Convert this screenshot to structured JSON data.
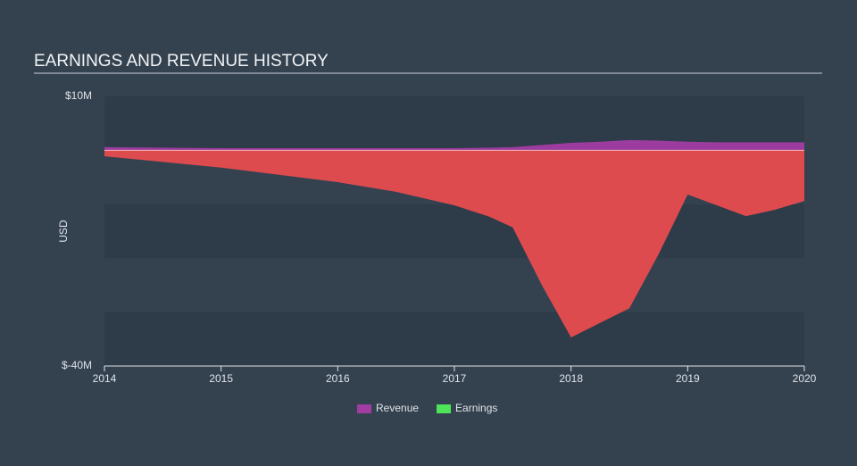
{
  "chart_data": {
    "type": "area",
    "title": "EARNINGS AND REVENUE HISTORY",
    "y_label": "USD",
    "x": [
      2014,
      2015,
      2016,
      2016.5,
      2017,
      2017.3,
      2017.5,
      2017.75,
      2018,
      2018.25,
      2018.5,
      2018.75,
      2019,
      2019.25,
      2019.5,
      2019.75,
      2020
    ],
    "series": [
      {
        "name": "Revenue",
        "color": "#a13ca3",
        "values": [
          0.6,
          0.4,
          0.4,
          0.4,
          0.4,
          0.5,
          0.6,
          1.0,
          1.4,
          1.6,
          1.9,
          1.8,
          1.6,
          1.5,
          1.5,
          1.5,
          1.5
        ]
      },
      {
        "name": "Earnings",
        "color": "#4fe35a",
        "negative_color": "#e84c4f",
        "values": [
          -1.1,
          -3.2,
          -5.9,
          -7.7,
          -10.2,
          -12.3,
          -14.3,
          -25,
          -34.7,
          -32,
          -29.3,
          -19.3,
          -8.2,
          -10.2,
          -12.2,
          -11,
          -9.4
        ]
      }
    ],
    "xlim": [
      2014,
      2020
    ],
    "xticks": [
      2014,
      2015,
      2016,
      2017,
      2018,
      2019,
      2020
    ],
    "ylim": [
      -40,
      10
    ],
    "yticks": [
      {
        "value": 10,
        "label": "$10M"
      },
      {
        "value": -40,
        "label": "$-40M"
      }
    ],
    "legend": "bottom"
  }
}
